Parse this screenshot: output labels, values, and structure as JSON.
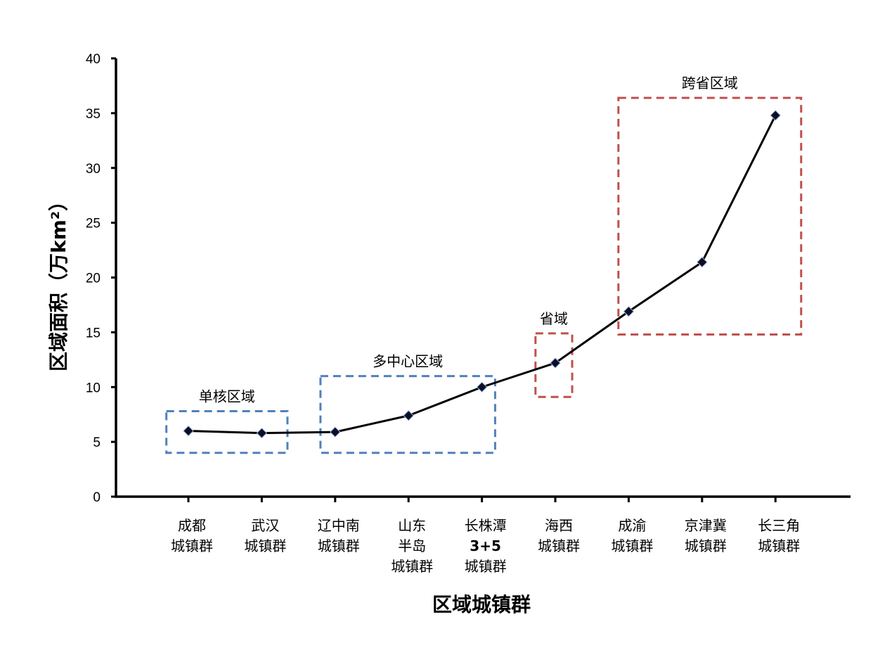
{
  "chart_data": {
    "type": "line",
    "xlabel": "区域城镇群",
    "ylabel": "区域面积（万km²）",
    "ylim": [
      0,
      40
    ],
    "yticks": [
      0,
      5,
      10,
      15,
      20,
      25,
      30,
      35,
      40
    ],
    "grid": false,
    "legend": "none",
    "categories": [
      [
        {
          "t": "成都"
        },
        {
          "t": "城镇群"
        }
      ],
      [
        {
          "t": "武汉"
        },
        {
          "t": "城镇群"
        }
      ],
      [
        {
          "t": "辽中南"
        },
        {
          "t": "城镇群"
        }
      ],
      [
        {
          "t": "山东"
        },
        {
          "t": "半岛"
        },
        {
          "t": "城镇群"
        }
      ],
      [
        {
          "t": "长株潭"
        },
        {
          "t": "3+5",
          "bold": true
        },
        {
          "t": "城镇群"
        }
      ],
      [
        {
          "t": "海西"
        },
        {
          "t": "城镇群"
        }
      ],
      [
        {
          "t": "成渝"
        },
        {
          "t": "城镇群"
        }
      ],
      [
        {
          "t": "京津冀"
        },
        {
          "t": "城镇群"
        }
      ],
      [
        {
          "t": "长三角"
        },
        {
          "t": "城镇群"
        }
      ]
    ],
    "series": [
      {
        "values": [
          6.0,
          5.8,
          5.9,
          7.4,
          10.0,
          12.2,
          16.9,
          21.4,
          34.8
        ],
        "line_color": "#000000",
        "marker_color": "#0b0d2a"
      }
    ],
    "annotations": [
      {
        "label": "单核区域",
        "from_index": -0.3,
        "to_index": 1.35,
        "y_low": 4.0,
        "y_high": 7.8,
        "color": "#4f81bd"
      },
      {
        "label": "多中心区域",
        "from_index": 1.8,
        "to_index": 4.18,
        "y_low": 4.0,
        "y_high": 11.0,
        "color": "#4f81bd"
      },
      {
        "label": "省域",
        "from_index": 4.73,
        "to_index": 5.23,
        "y_low": 9.1,
        "y_high": 14.9,
        "color": "#c0504d"
      },
      {
        "label": "跨省区域",
        "from_index": 5.86,
        "to_index": 8.35,
        "y_low": 14.8,
        "y_high": 36.4,
        "color": "#c0504d"
      }
    ]
  }
}
